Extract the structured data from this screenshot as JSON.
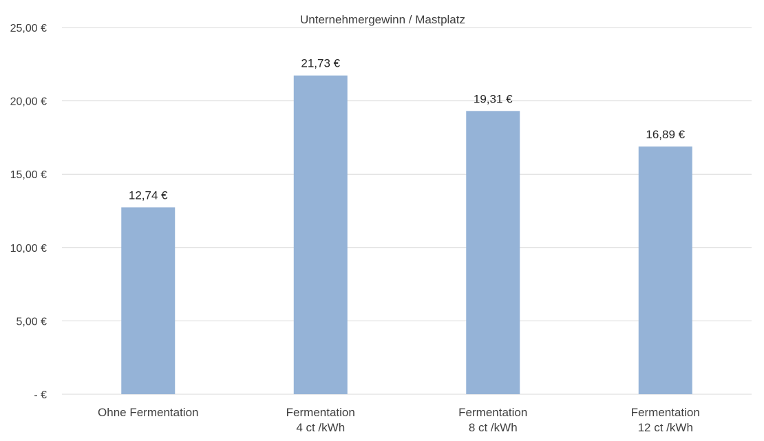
{
  "chart_data": {
    "type": "bar",
    "title": "Unternehmergewinn / Mastplatz",
    "categories": [
      [
        "Ohne Fermentation"
      ],
      [
        "Fermentation",
        "4 ct /kWh"
      ],
      [
        "Fermentation",
        "8 ct /kWh"
      ],
      [
        "Fermentation",
        "12 ct /kWh"
      ]
    ],
    "values": [
      12.74,
      21.73,
      19.31,
      16.89
    ],
    "data_labels": [
      "12,74 €",
      "21,73 €",
      "19,31 €",
      "16,89 €"
    ],
    "y_ticks": [
      0,
      5,
      10,
      15,
      20,
      25
    ],
    "y_tick_labels": [
      "-  €",
      "5,00 €",
      "10,00 €",
      "15,00 €",
      "20,00 €",
      "25,00 €"
    ],
    "ylim": [
      0,
      25
    ],
    "grid": true,
    "legend": "none",
    "bar_color": "#95b3d7",
    "xlabel": "",
    "ylabel": ""
  }
}
